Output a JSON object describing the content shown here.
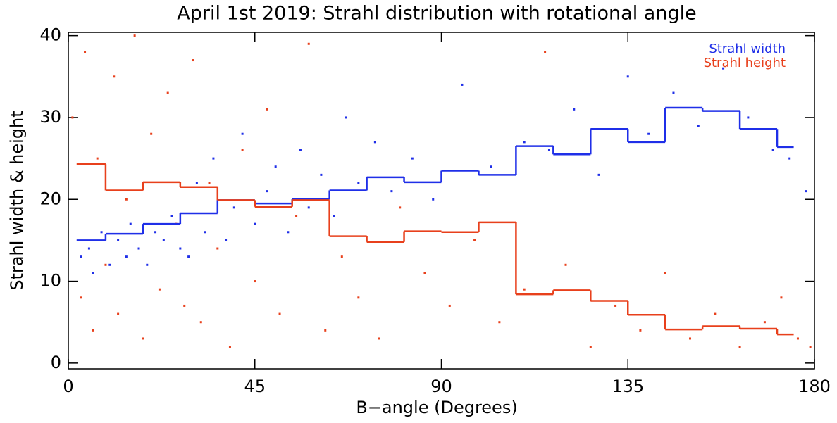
{
  "chart_data": {
    "type": "scatter",
    "title": "April 1st 2019: Strahl distribution with rotational angle",
    "x_label": "B−angle (Degrees)",
    "y_label": "Strahl width & height",
    "xlim": [
      0,
      180
    ],
    "ylim": [
      -0.7,
      40.4
    ],
    "xticks": [
      0,
      45,
      90,
      135,
      180
    ],
    "yticks": [
      0,
      10,
      20,
      30,
      40
    ],
    "legend": "top-right",
    "series": [
      {
        "name": "Strahl width",
        "color": "#1f2fe8",
        "x": [
          3,
          5,
          6,
          8,
          10,
          12,
          14,
          15,
          17,
          19,
          21,
          23,
          25,
          27,
          29,
          31,
          33,
          35,
          38,
          40,
          42,
          45,
          48,
          50,
          53,
          56,
          58,
          61,
          64,
          67,
          70,
          74,
          78,
          83,
          88,
          95,
          102,
          110,
          116,
          122,
          128,
          135,
          140,
          146,
          152,
          158,
          164,
          170,
          174,
          178
        ],
        "values": [
          13,
          14,
          11,
          16,
          12,
          15,
          13,
          17,
          14,
          12,
          16,
          15,
          18,
          14,
          13,
          22,
          16,
          25,
          15,
          19,
          28,
          17,
          21,
          24,
          16,
          26,
          19,
          23,
          18,
          30,
          22,
          27,
          21,
          25,
          20,
          34,
          24,
          27,
          26,
          31,
          23,
          35,
          28,
          33,
          29,
          36,
          30,
          26,
          25,
          21
        ]
      },
      {
        "name": "Strahl height",
        "color": "#e8401c",
        "x": [
          1,
          3,
          4,
          6,
          7,
          9,
          11,
          12,
          14,
          16,
          18,
          20,
          22,
          24,
          26,
          28,
          30,
          32,
          34,
          36,
          39,
          42,
          45,
          48,
          51,
          55,
          58,
          62,
          66,
          70,
          75,
          80,
          86,
          92,
          98,
          104,
          110,
          115,
          120,
          126,
          132,
          138,
          144,
          150,
          156,
          162,
          168,
          172,
          176,
          179
        ],
        "values": [
          30,
          8,
          38,
          4,
          25,
          12,
          35,
          6,
          20,
          40,
          3,
          28,
          9,
          33,
          17,
          7,
          37,
          5,
          22,
          14,
          2,
          26,
          10,
          31,
          6,
          18,
          39,
          4,
          13,
          8,
          3,
          19,
          11,
          7,
          15,
          5,
          9,
          38,
          12,
          2,
          7,
          4,
          11,
          3,
          6,
          2,
          5,
          8,
          3,
          2
        ]
      }
    ],
    "bins": [
      2,
      9,
      18,
      27,
      36,
      45,
      54,
      63,
      72,
      81,
      90,
      99,
      108,
      117,
      126,
      135,
      144,
      153,
      162,
      171,
      175
    ],
    "step_series": [
      {
        "color": "#1f2fe8",
        "values": [
          15.0,
          15.8,
          17.0,
          18.3,
          19.9,
          19.5,
          20.0,
          21.1,
          22.7,
          22.1,
          23.5,
          23.0,
          26.5,
          25.5,
          28.6,
          27.0,
          31.2,
          30.8,
          28.6,
          26.4
        ]
      },
      {
        "color": "#e8401c",
        "values": [
          24.3,
          21.1,
          22.1,
          21.5,
          19.9,
          19.1,
          19.9,
          15.5,
          14.8,
          16.1,
          16.0,
          17.2,
          8.4,
          8.9,
          7.6,
          5.9,
          4.1,
          4.5,
          4.2,
          3.5
        ]
      }
    ]
  }
}
